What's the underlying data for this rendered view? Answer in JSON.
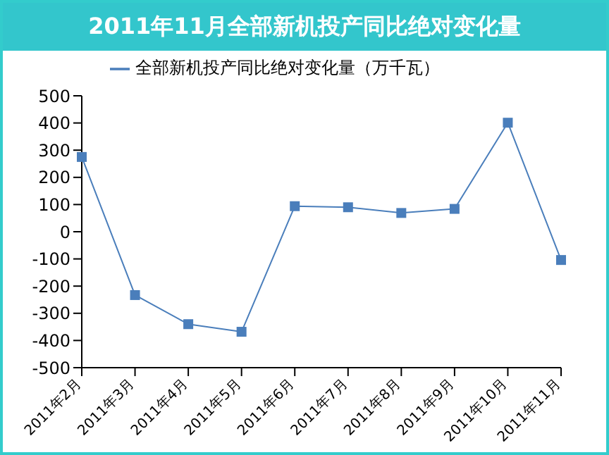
{
  "chart_data": {
    "type": "line",
    "title": "2011年11月全部新机投产同比绝对变化量",
    "categories": [
      "2011年2月",
      "2011年3月",
      "2011年4月",
      "2011年5月",
      "2011年6月",
      "2011年7月",
      "2011年8月",
      "2011年9月",
      "2011年10月",
      "2011年11月"
    ],
    "series": [
      {
        "name": "全部新机投产同比绝对变化量（万千瓦）",
        "color": "#4a7ebb",
        "values": [
          275,
          -233,
          -340,
          -368,
          94,
          90,
          69,
          84,
          401,
          -104
        ]
      }
    ],
    "ylim": [
      -500,
      500
    ],
    "yticks": [
      -500,
      -400,
      -300,
      -200,
      -100,
      0,
      100,
      200,
      300,
      400,
      500
    ],
    "legend": "top",
    "marker": "square"
  }
}
